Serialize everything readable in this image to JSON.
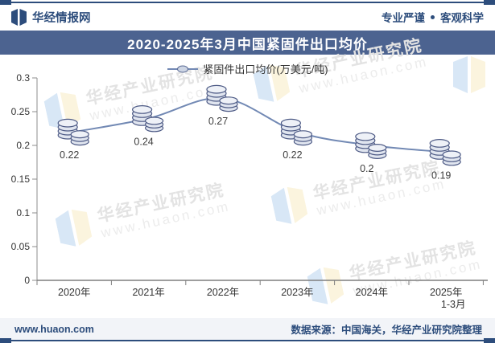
{
  "header": {
    "brand": "华经情报网",
    "slogan_left": "专业严谨",
    "slogan_right": "客观科学"
  },
  "title": "2020-2025年3月中国紧固件出口均价",
  "legend": {
    "label": "紧固件出口均价(万美元/吨)"
  },
  "watermark": {
    "line1": "华经产业研究院",
    "line2": "www.huaon.com"
  },
  "footer": {
    "website": "www.huaon.com",
    "source": "数据来源：中国海关，华经产业研究院整理"
  },
  "colors": {
    "brand_navy": "#2d4d7c",
    "title_bar_bg": "#4c6390",
    "series_line": "#7289b4",
    "coin_fill": "#e0e5ef",
    "coin_top_fill": "#eef1f7",
    "coin_stroke": "#4d5a85",
    "watermark_blue": "#d8e7f6",
    "watermark_cream": "#fbf4de",
    "footer_bg": "#f2f4f8",
    "axis_gray": "#8c8c8c"
  },
  "chart_data": {
    "type": "line",
    "title": "2020-2025年3月中国紧固件出口均价",
    "series_name": "紧固件出口均价(万美元/吨)",
    "categories": [
      "2020年",
      "2021年",
      "2022年",
      "2023年",
      "2024年",
      "2025年"
    ],
    "x_sublabels": [
      "",
      "",
      "",
      "",
      "",
      "1-3月"
    ],
    "values": [
      0.22,
      0.24,
      0.27,
      0.22,
      0.2,
      0.19
    ],
    "labels": [
      "0.22",
      "0.24",
      "0.27",
      "0.22",
      "0.2",
      "0.19"
    ],
    "ylim": [
      0,
      0.3
    ],
    "yticks": [
      0,
      0.05,
      0.1,
      0.15,
      0.2,
      0.25,
      0.3
    ],
    "ytick_labels": [
      "0",
      "0.05",
      "0.1",
      "0.15",
      "0.2",
      "0.25",
      "0.3"
    ],
    "grid": false,
    "legend_position": "top",
    "marker": "coin-stack",
    "xlabel": "",
    "ylabel": ""
  }
}
